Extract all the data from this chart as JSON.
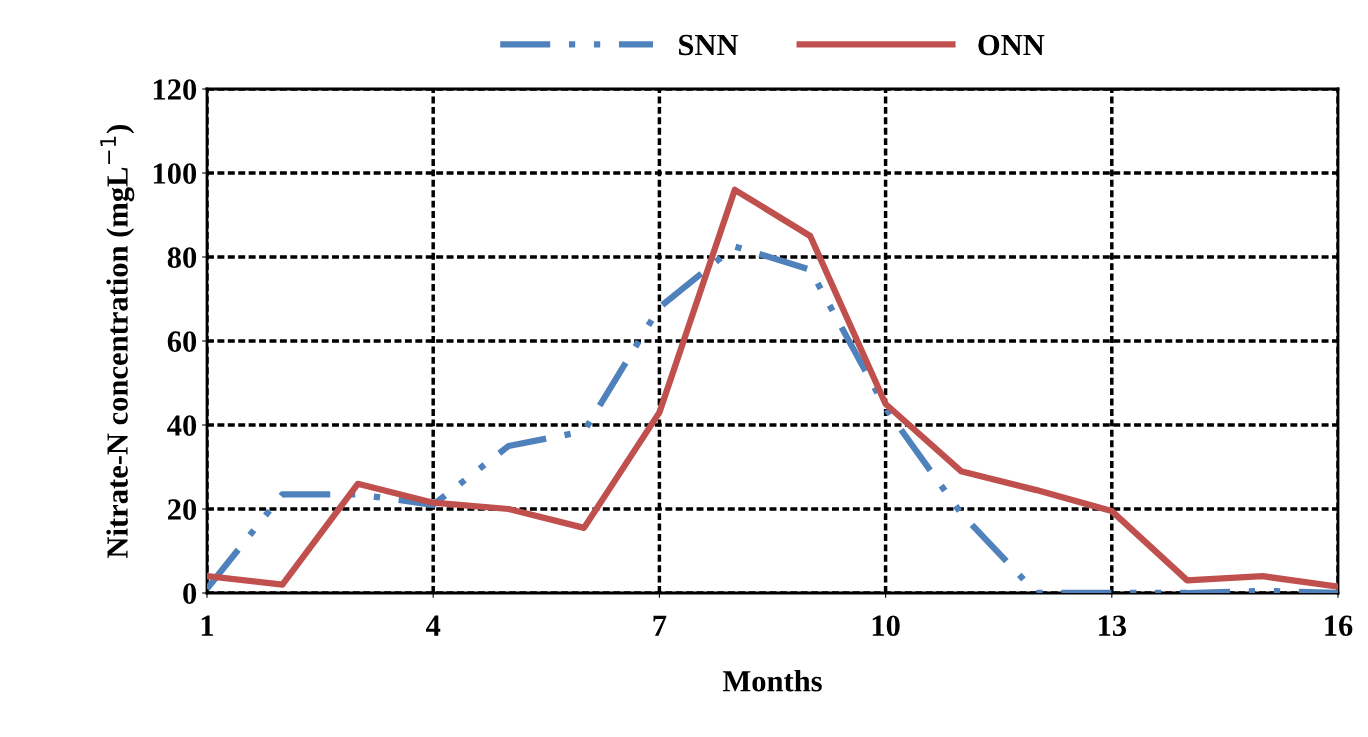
{
  "chart_data": {
    "type": "line",
    "xlabel": "Months",
    "ylabel": "Nitrate-N concentration (mgL$^{−1}$)",
    "x": [
      1,
      2,
      3,
      4,
      5,
      6,
      7,
      8,
      9,
      10,
      11,
      12,
      13,
      14,
      15,
      16
    ],
    "series": [
      {
        "name": "SNN",
        "color": "#4f81bd",
        "line_style": "dashdot",
        "values": [
          1,
          23.5,
          23.5,
          21,
          35,
          38.5,
          68,
          82.5,
          77,
          44,
          19,
          0,
          0,
          0,
          0.5,
          0
        ]
      },
      {
        "name": "ONN",
        "color": "#c0504d",
        "line_style": "solid",
        "values": [
          4,
          2,
          26,
          21.5,
          20,
          15.5,
          43,
          96,
          85,
          45,
          29,
          24.5,
          19.5,
          3,
          4,
          1.5
        ]
      }
    ],
    "xlim": [
      1,
      16
    ],
    "xticks": [
      1,
      4,
      7,
      10,
      13,
      16
    ],
    "ylim": [
      0,
      120
    ],
    "yticks": [
      0,
      20,
      40,
      60,
      80,
      100,
      120
    ],
    "grid": true,
    "legend": "top",
    "marker": "none"
  }
}
